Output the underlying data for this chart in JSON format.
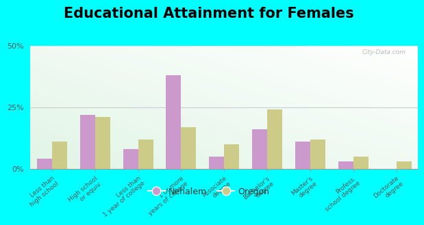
{
  "title": "Educational Attainment for Females",
  "categories": [
    "Less than\nhigh school",
    "High school\nor equiv.",
    "Less than\n1 year of college",
    "1 or more\nyears of college",
    "Associate\ndegree",
    "Bachelor's\ndegree",
    "Master's\ndegree",
    "Profess.\nschool degree",
    "Doctorate\ndegree"
  ],
  "nehalem": [
    4,
    22,
    8,
    38,
    5,
    16,
    11,
    3,
    0
  ],
  "oregon": [
    11,
    21,
    12,
    17,
    10,
    24,
    12,
    5,
    3
  ],
  "nehalem_color": "#cc99cc",
  "oregon_color": "#cccc88",
  "ylim": [
    0,
    50
  ],
  "yticks": [
    0,
    25,
    50
  ],
  "ytick_labels": [
    "0%",
    "25%",
    "50%"
  ],
  "bar_width": 0.35,
  "legend_nehalem": "Nehalem",
  "legend_oregon": "Oregon",
  "title_fontsize": 15,
  "tick_fontsize": 6.5,
  "legend_fontsize": 9,
  "background_color": "#00ffff",
  "watermark": "City-Data.com"
}
